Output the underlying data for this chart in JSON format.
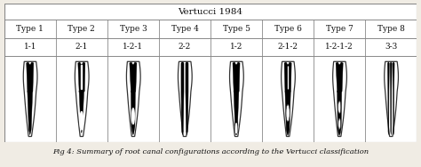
{
  "title": "Vertucci 1984",
  "caption": "Fig 4: Summary of root canal configurations according to the Vertucci classification",
  "types": [
    "Type 1",
    "Type 2",
    "Type 3",
    "Type 4",
    "Type 5",
    "Type 6",
    "Type 7",
    "Type 8"
  ],
  "codes": [
    "1-1",
    "2-1",
    "1-2-1",
    "2-2",
    "1-2",
    "2-1-2",
    "1-2-1-2",
    "3-3"
  ],
  "bg_color": "#f0ece4",
  "table_bg": "#ffffff",
  "border_color": "#888888",
  "text_color": "#111111",
  "title_fontsize": 7.5,
  "label_fontsize": 6.5,
  "caption_fontsize": 6.0
}
